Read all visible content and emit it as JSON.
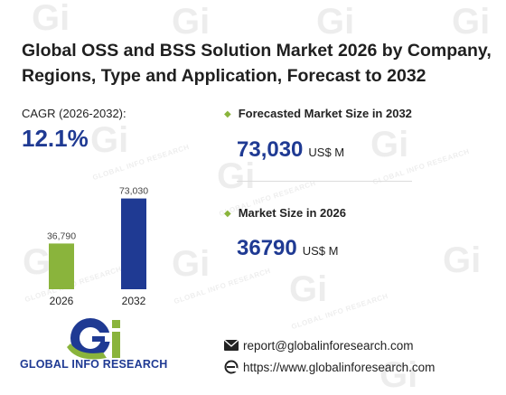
{
  "title": "Global OSS and BSS Solution Market 2026 by Company, Regions, Type and Application, Forecast to 2032",
  "cagr": {
    "label": "CAGR (2026-2032):",
    "value": "12.1%"
  },
  "chart_data": {
    "type": "bar",
    "categories": [
      "2026",
      "2032"
    ],
    "values": [
      36790,
      73030
    ],
    "value_labels": [
      "36,790",
      "73,030"
    ],
    "colors": [
      "#8ab43c",
      "#1f3a93"
    ],
    "title": "",
    "xlabel": "",
    "ylabel": "",
    "ylim": [
      0,
      80000
    ]
  },
  "forecast": {
    "label": "Forecasted Market Size in 2032",
    "value": "73,030",
    "unit": "US$ M"
  },
  "market": {
    "label": "Market Size in 2026",
    "value": "36790",
    "unit": "US$ M"
  },
  "brand": {
    "name": "GLOBAL INFO RESEARCH",
    "logo_letters": "Gi"
  },
  "contact": {
    "email": "report@globalinforesearch.com",
    "website": "https://www.globalinforesearch.com",
    "email_icon": "envelope-icon",
    "web_icon": "browser-e-icon"
  },
  "watermark": {
    "letters": "Gi",
    "text": "GLOBAL INFO RESEARCH"
  },
  "colors": {
    "accent_blue": "#1f3a93",
    "accent_green": "#8ab43c"
  }
}
